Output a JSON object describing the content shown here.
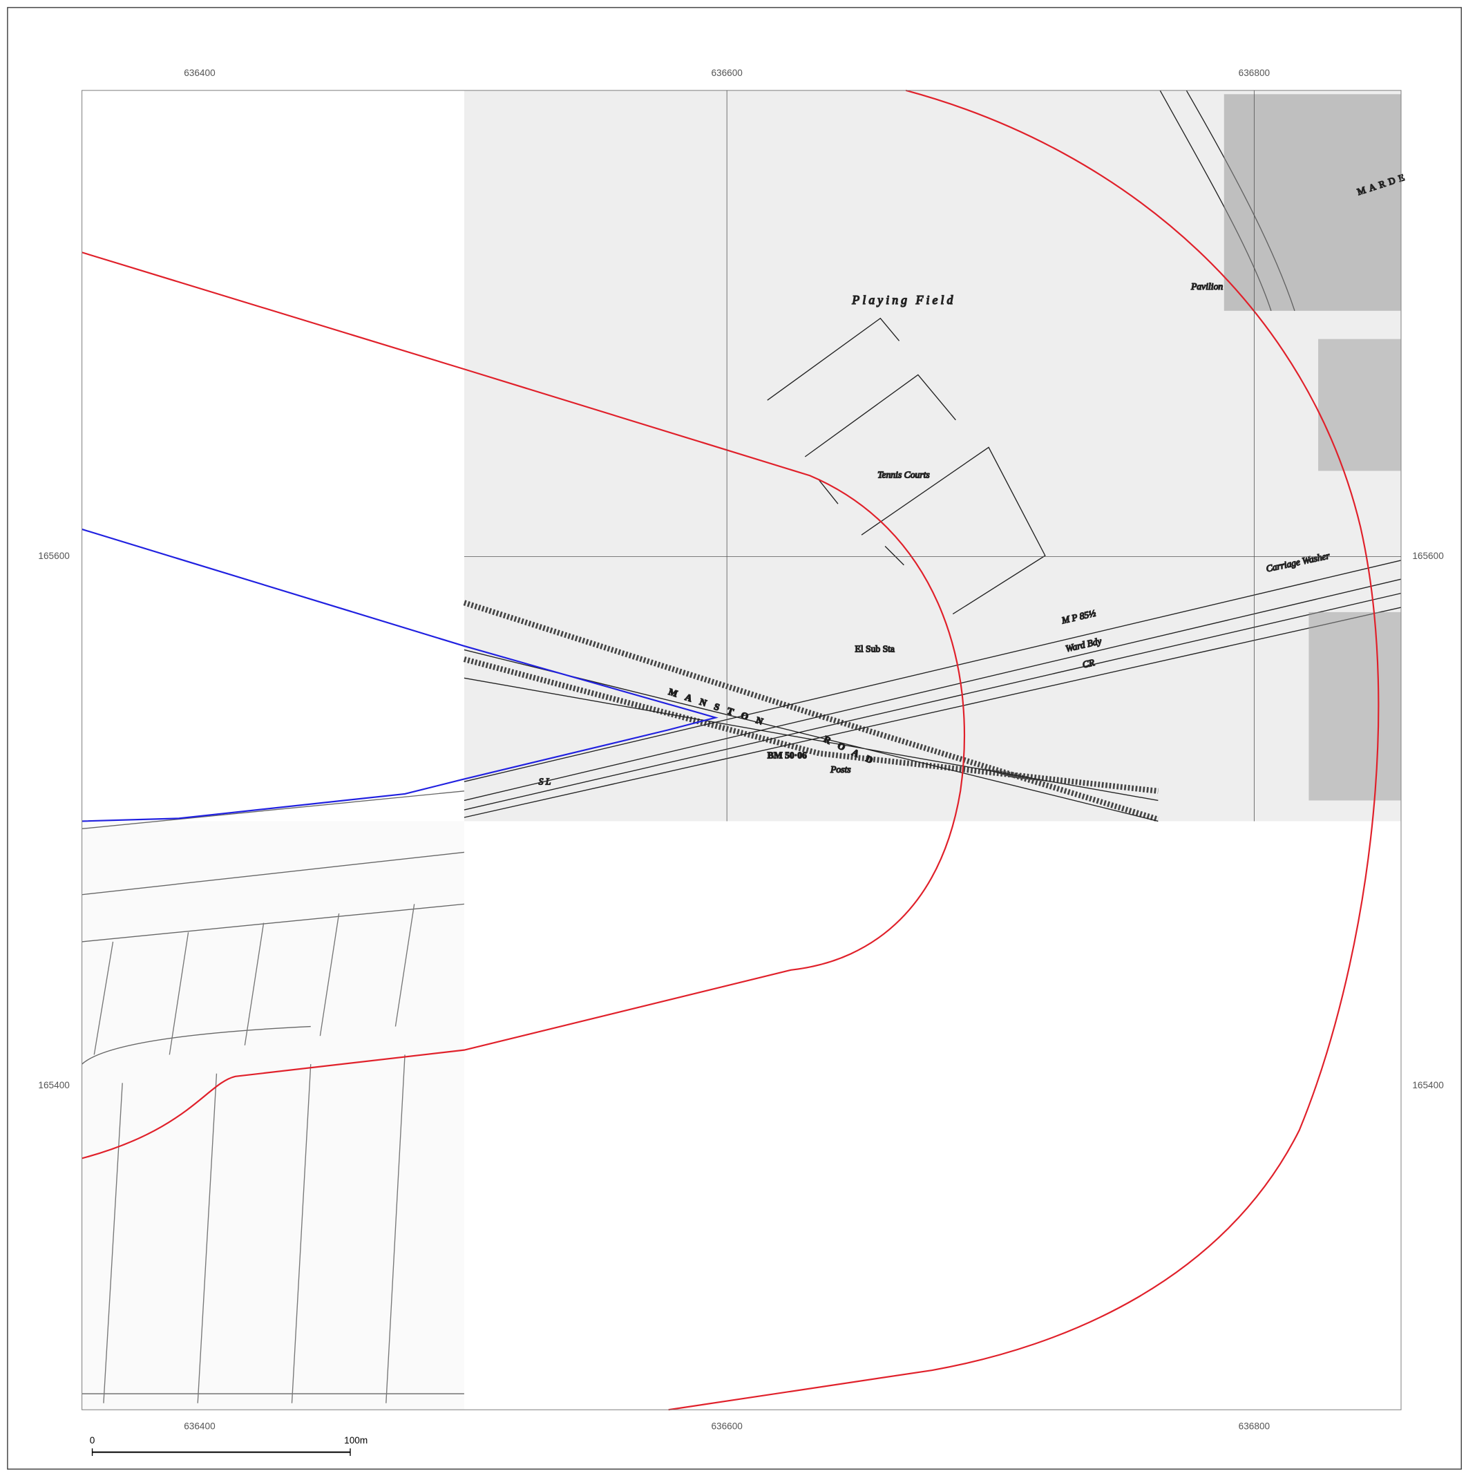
{
  "x_grid": [
    636400,
    636600,
    636800
  ],
  "y_grid": [
    165600,
    165400
  ],
  "scale_bar": {
    "start": "0",
    "end": "100m"
  },
  "labels": {
    "playing_field": "Playing Field",
    "tennis_courts": "Tennis Courts",
    "pavilion": "Pavilion",
    "sub_station": "El Sub Sta",
    "manston": "MANSTON",
    "road": "ROAD",
    "ward_bdy": "Ward Bdy",
    "cr": "CR",
    "mp": "M P 85½",
    "carriage_washer": "Carriage Washer",
    "bm": "BM 50·06",
    "posts": "Posts",
    "marden": "MARDE",
    "sl": "S L"
  }
}
